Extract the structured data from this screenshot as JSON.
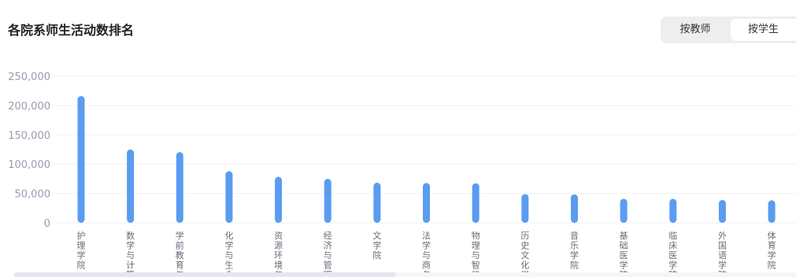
{
  "header": {
    "title": "各院系师生活动数排名",
    "toggle_teacher": "按教师",
    "toggle_student": "按学生",
    "active_toggle": "按学生"
  },
  "chart_data": {
    "type": "bar",
    "title": "各院系师生活动数排名",
    "xlabel": "",
    "ylabel": "",
    "ylim": [
      0,
      250000
    ],
    "yticks": [
      "250,000",
      "200,000",
      "150,000",
      "100,000",
      "50,000",
      "0"
    ],
    "grid": true,
    "bar_color": "#5b9cf0",
    "categories": [
      "护理学院",
      "数学与计算",
      "学前教育与",
      "化学与生命",
      "资源环境与",
      "经济与管理",
      "文学院",
      "法学与商务",
      "物理与智能",
      "历史文化学",
      "音乐学院",
      "基础医学院",
      "临床医学院",
      "外国语学院",
      "体育学院"
    ],
    "values": [
      216000,
      125000,
      120500,
      88000,
      78500,
      75000,
      68500,
      68000,
      67500,
      49000,
      48500,
      41000,
      41000,
      39000,
      38500
    ]
  }
}
